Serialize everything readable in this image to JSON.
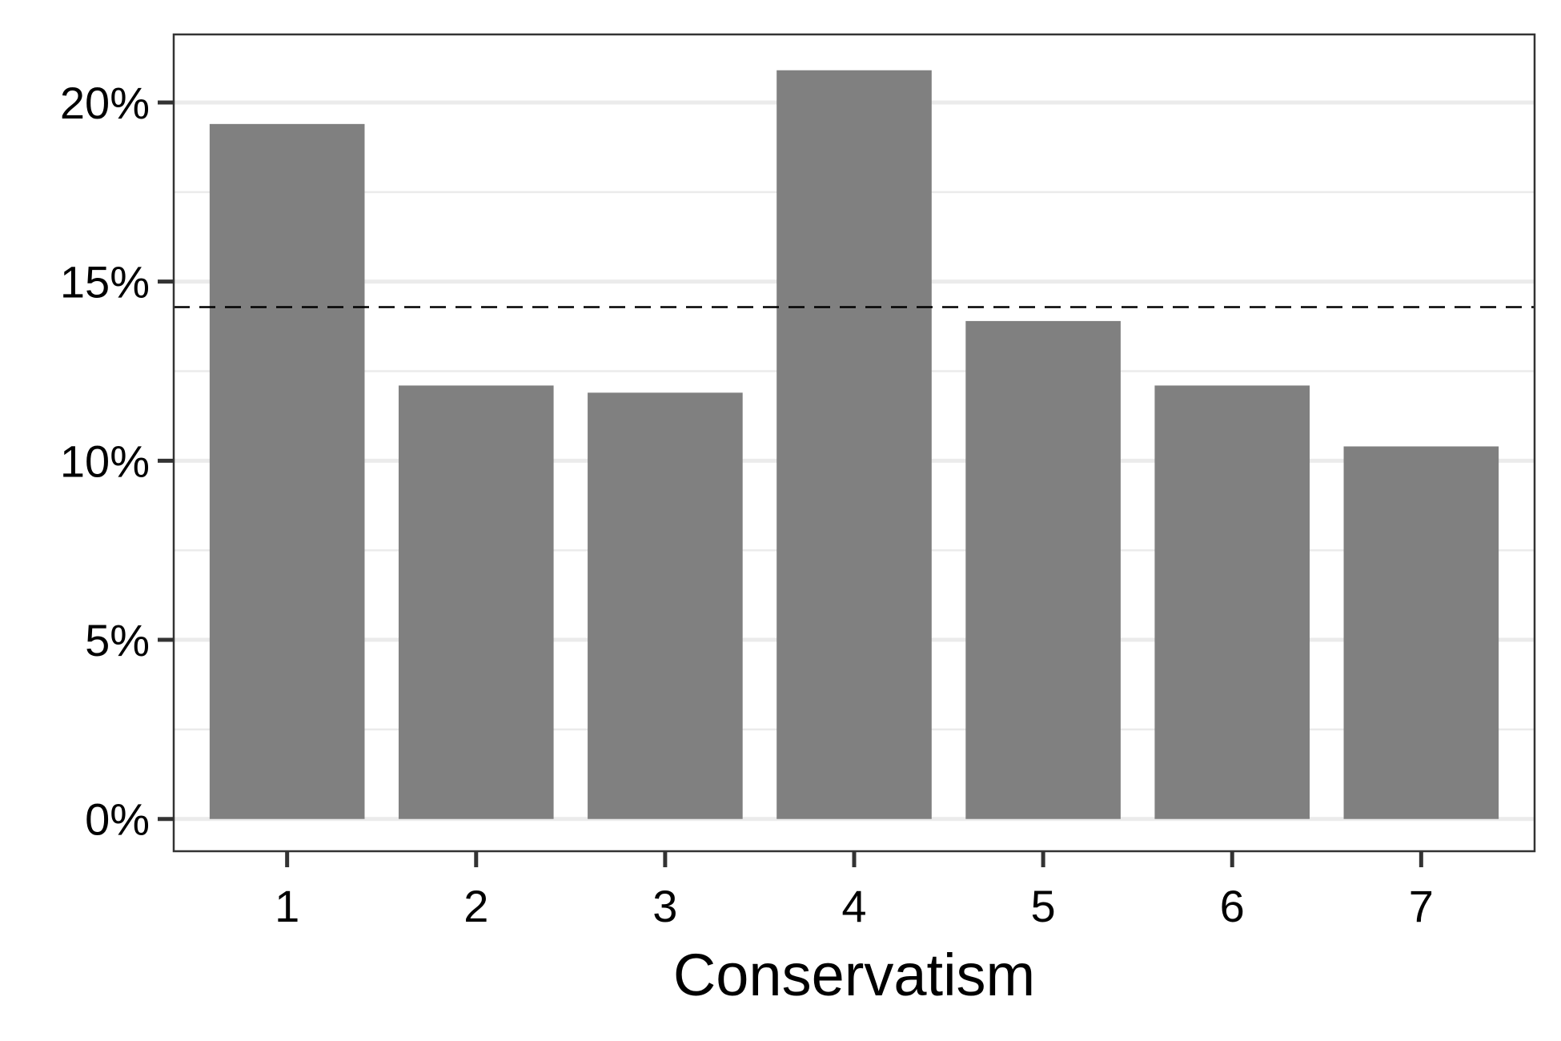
{
  "chart_data": {
    "type": "bar",
    "title": "",
    "xlabel": "Conservatism",
    "ylabel": "",
    "categories": [
      "1",
      "2",
      "3",
      "4",
      "5",
      "6",
      "7"
    ],
    "values": [
      19.4,
      12.1,
      11.9,
      20.9,
      13.9,
      12.1,
      10.4
    ],
    "value_unit": "%",
    "ylim": [
      -0.9,
      21.9
    ],
    "y_ticks": [
      0,
      5,
      10,
      15,
      20
    ],
    "y_tick_labels": [
      "0%",
      "5%",
      "10%",
      "15%",
      "20%"
    ],
    "reference_line": {
      "value": 14.29,
      "style": "dashed",
      "color": "#000000"
    },
    "bar_color": "#808080",
    "grid": true,
    "legend": "none"
  }
}
